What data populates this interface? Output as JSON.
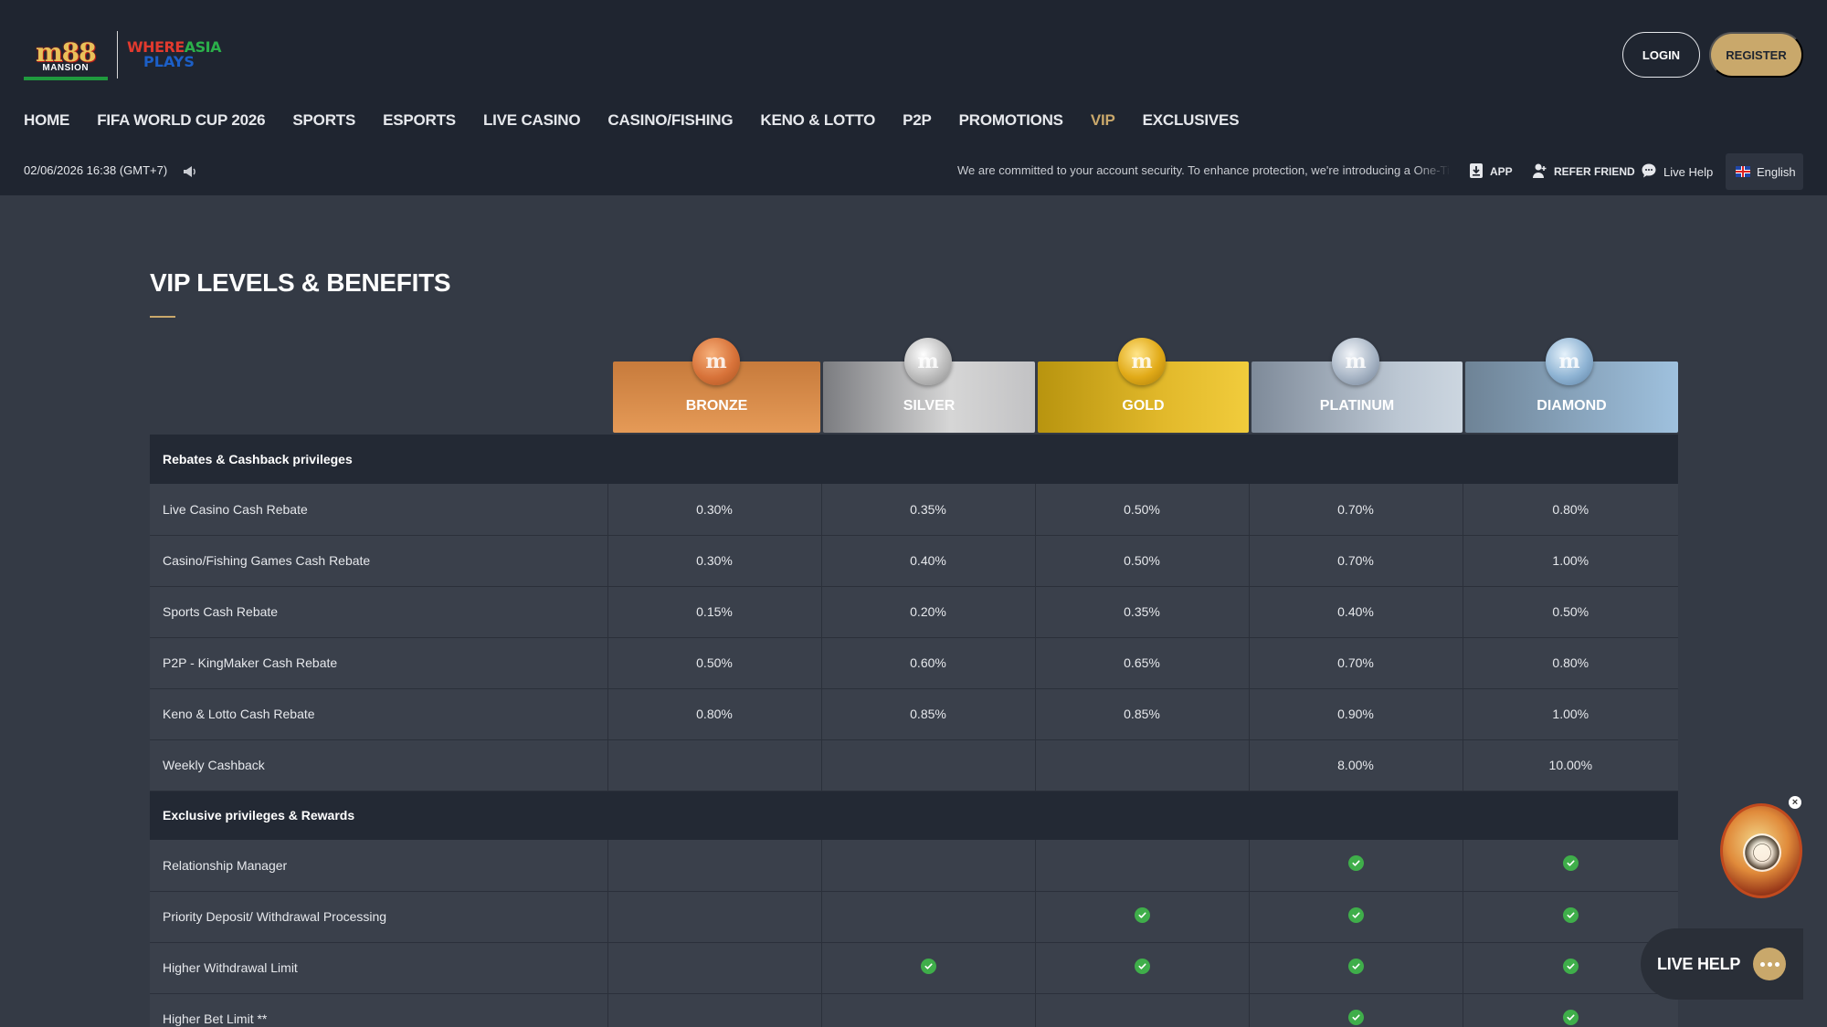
{
  "brand": {
    "logo_main": "m88",
    "logo_sub": "MANSION",
    "tagline_1a": "WHERE",
    "tagline_1b": "ASIA",
    "tagline_2": "PLAYS"
  },
  "header": {
    "login_label": "LOGIN",
    "register_label": "REGISTER"
  },
  "nav": {
    "items": [
      {
        "label": "HOME"
      },
      {
        "label": "FIFA WORLD CUP 2026"
      },
      {
        "label": "SPORTS"
      },
      {
        "label": "ESPORTS"
      },
      {
        "label": "LIVE CASINO"
      },
      {
        "label": "CASINO/FISHING"
      },
      {
        "label": "KENO & LOTTO"
      },
      {
        "label": "P2P"
      },
      {
        "label": "PROMOTIONS"
      },
      {
        "label": "VIP"
      },
      {
        "label": "EXCLUSIVES"
      }
    ],
    "active": "VIP"
  },
  "infobar": {
    "datetime": "02/06/2026 16:38 (GMT+7)",
    "announcement": "We are committed to your account security. To enhance protection, we're introducing a One-Tim",
    "app_label": "APP",
    "refer_label": "REFER FRIEND",
    "help_label": "Live Help",
    "language": "English"
  },
  "page": {
    "title": "VIP LEVELS & BENEFITS"
  },
  "tiers": [
    "BRONZE",
    "SILVER",
    "GOLD",
    "PLATINUM",
    "DIAMOND"
  ],
  "table": {
    "sections": [
      {
        "title": "Rebates & Cashback privileges",
        "rows": [
          {
            "label": "Live Casino Cash Rebate",
            "values": [
              "0.30%",
              "0.35%",
              "0.50%",
              "0.70%",
              "0.80%"
            ]
          },
          {
            "label": "Casino/Fishing Games Cash Rebate",
            "values": [
              "0.30%",
              "0.40%",
              "0.50%",
              "0.70%",
              "1.00%"
            ]
          },
          {
            "label": "Sports Cash Rebate",
            "values": [
              "0.15%",
              "0.20%",
              "0.35%",
              "0.40%",
              "0.50%"
            ]
          },
          {
            "label": "P2P - KingMaker Cash Rebate",
            "values": [
              "0.50%",
              "0.60%",
              "0.65%",
              "0.70%",
              "0.80%"
            ]
          },
          {
            "label": "Keno & Lotto Cash Rebate",
            "values": [
              "0.80%",
              "0.85%",
              "0.85%",
              "0.90%",
              "1.00%"
            ]
          },
          {
            "label": "Weekly Cashback",
            "values": [
              "",
              "",
              "",
              "8.00%",
              "10.00%"
            ]
          }
        ]
      },
      {
        "title": "Exclusive privileges & Rewards",
        "rows": [
          {
            "label": "Relationship Manager",
            "checks": [
              false,
              false,
              false,
              true,
              true
            ]
          },
          {
            "label": "Priority Deposit/ Withdrawal Processing",
            "checks": [
              false,
              false,
              true,
              true,
              true
            ]
          },
          {
            "label": "Higher Withdrawal Limit",
            "checks": [
              false,
              true,
              true,
              true,
              true
            ]
          },
          {
            "label": "Higher Bet Limit **",
            "checks": [
              false,
              false,
              false,
              true,
              true
            ]
          }
        ]
      }
    ]
  },
  "floating": {
    "close_glyph": "×",
    "live_help_label": "LIVE HELP"
  },
  "colors": {
    "header_bg": "#1f2530",
    "page_bg": "#343a45",
    "accent_gold": "#c9a86b",
    "check_green": "#3fae4a"
  }
}
